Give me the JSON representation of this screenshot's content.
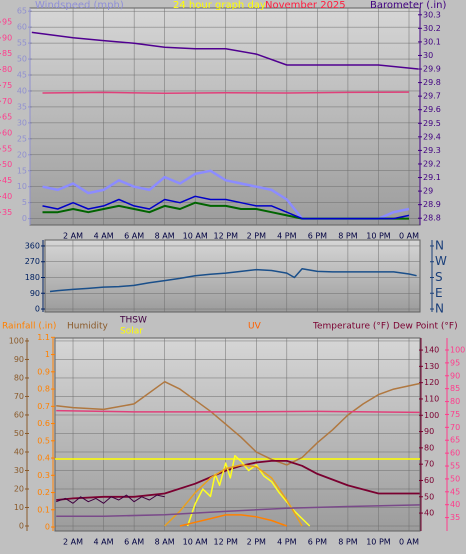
{
  "chart_data": [
    {
      "type": "line",
      "title": "24 hour graph day",
      "subtitle": "November 2025",
      "ylabel": "Windspeed (mph)",
      "y2label": "Barometer (.in)",
      "xlim": [
        -0.82,
        24.72
      ],
      "xticks": [
        {
          "value": 2,
          "label": "2 AM"
        },
        {
          "value": 4,
          "label": "4 AM"
        },
        {
          "value": 6,
          "label": "6 AM"
        },
        {
          "value": 8,
          "label": "8 AM"
        },
        {
          "value": 10,
          "label": "10 AM"
        },
        {
          "value": 12,
          "label": "12 PM"
        },
        {
          "value": 14,
          "label": "2 PM"
        },
        {
          "value": 16,
          "label": "4 PM"
        },
        {
          "value": 18,
          "label": "6 PM"
        },
        {
          "value": 20,
          "label": "8 PM"
        },
        {
          "value": 22,
          "label": "10 PM"
        },
        {
          "value": 24,
          "label": "0 AM"
        }
      ],
      "ylim": [
        -2,
        66
      ],
      "yticks": [
        0,
        5,
        10,
        15,
        20,
        25,
        30,
        35,
        40,
        45,
        50,
        55,
        60,
        65
      ],
      "y3lim": [
        31,
        99.4
      ],
      "y3ticks": [
        35,
        40,
        45,
        50,
        55,
        60,
        65,
        70,
        75,
        80,
        85,
        90,
        95
      ],
      "y2lim": [
        28.75,
        30.35
      ],
      "y2ticks": [
        28.8,
        28.9,
        29,
        29.1,
        29.2,
        29.3,
        29.4,
        29.5,
        29.6,
        29.7,
        29.8,
        29.9,
        30,
        30.1,
        30.2,
        30.3
      ],
      "grid": true,
      "series": [
        {
          "color": "#8c8cff",
          "width": 2.5,
          "x": [
            0,
            1,
            2,
            3,
            4,
            5,
            6,
            7,
            8,
            9,
            10,
            11,
            12,
            13,
            14,
            15,
            16,
            17,
            18,
            19,
            20,
            21,
            22,
            23,
            24
          ],
          "values": [
            10,
            9,
            11,
            8,
            9,
            12,
            10,
            9,
            13,
            11,
            14,
            15,
            12,
            11,
            10,
            9,
            6,
            0,
            0,
            0,
            0,
            0,
            0,
            2,
            3
          ]
        },
        {
          "color": "#006400",
          "width": 2,
          "x": [
            0,
            1,
            2,
            3,
            4,
            5,
            6,
            7,
            8,
            9,
            10,
            11,
            12,
            13,
            14,
            15,
            16,
            17,
            18,
            19,
            20,
            21,
            22,
            23,
            24
          ],
          "values": [
            2,
            2,
            3,
            2,
            3,
            4,
            3,
            2,
            4,
            3,
            5,
            4,
            4,
            3,
            3,
            2,
            1,
            0,
            0,
            0,
            0,
            0,
            0,
            0,
            0
          ]
        },
        {
          "color": "#0000c8",
          "width": 1.5,
          "x": [
            0,
            1,
            2,
            3,
            4,
            5,
            6,
            7,
            8,
            9,
            10,
            11,
            12,
            13,
            14,
            15,
            16,
            17,
            18,
            19,
            20,
            21,
            22,
            23,
            24
          ],
          "values": [
            4,
            3,
            5,
            3,
            4,
            6,
            4,
            3,
            6,
            5,
            7,
            6,
            6,
            5,
            4,
            4,
            2,
            0,
            0,
            0,
            0,
            0,
            0,
            0,
            1
          ]
        },
        {
          "color": "#e0407a",
          "width": 1.5,
          "axis": "y3",
          "x": [
            0,
            4,
            8,
            12,
            16,
            20,
            24
          ],
          "values": [
            72.6,
            72.8,
            72.5,
            72.7,
            72.6,
            72.8,
            72.9
          ]
        },
        {
          "color": "#500090",
          "width": 1.5,
          "axis": "y2",
          "x": [
            -0.7,
            2,
            4,
            6,
            8,
            10,
            12,
            14,
            16,
            18,
            20,
            22,
            24.6
          ],
          "values": [
            30.17,
            30.13,
            30.11,
            30.09,
            30.06,
            30.05,
            30.05,
            30.01,
            29.93,
            29.93,
            29.93,
            29.93,
            29.9
          ]
        }
      ]
    },
    {
      "type": "line",
      "xlim": [
        0.17,
        24.72
      ],
      "xgrid": [
        2,
        4,
        6,
        8,
        10,
        12,
        14,
        16,
        18,
        20,
        22,
        24
      ],
      "ylim": [
        -17,
        394
      ],
      "yticks": [
        0,
        90,
        180,
        270,
        360
      ],
      "y2lim": [
        -17,
        394
      ],
      "y2ticks": [
        {
          "value": 360,
          "label": "N"
        },
        {
          "value": 270,
          "label": "W"
        },
        {
          "value": 180,
          "label": "S"
        },
        {
          "value": 90,
          "label": "E"
        },
        {
          "value": 0,
          "label": "N"
        }
      ],
      "grid": true,
      "series": [
        {
          "color": "#1a4f8a",
          "width": 1.5,
          "x": [
            0.5,
            1,
            2,
            3,
            4,
            5,
            6,
            7,
            8,
            9,
            10,
            11,
            12,
            13,
            14,
            15,
            16,
            16.5,
            17,
            18,
            19,
            20,
            21,
            22,
            23,
            24,
            24.5
          ],
          "values": [
            100,
            105,
            112,
            118,
            125,
            128,
            135,
            150,
            162,
            175,
            190,
            198,
            205,
            215,
            225,
            220,
            205,
            180,
            230,
            215,
            212,
            212,
            212,
            212,
            212,
            200,
            190
          ]
        }
      ]
    },
    {
      "type": "line",
      "y3label": "Rainfall (.in)",
      "xlim": [
        0.82,
        24.72
      ],
      "xticks": [
        {
          "value": 2,
          "label": "2 AM"
        },
        {
          "value": 4,
          "label": "4 AM"
        },
        {
          "value": 6,
          "label": "6 AM"
        },
        {
          "value": 8,
          "label": "8 AM"
        },
        {
          "value": 10,
          "label": "10 AM"
        },
        {
          "value": 12,
          "label": "12 PM"
        },
        {
          "value": 14,
          "label": "2 PM"
        },
        {
          "value": 16,
          "label": "4 PM"
        },
        {
          "value": 18,
          "label": "6 PM"
        },
        {
          "value": 20,
          "label": "8 PM"
        },
        {
          "value": 22,
          "label": "10 PM"
        },
        {
          "value": 24,
          "label": "0 AM"
        }
      ],
      "ylim": [
        -2.7,
        101.6
      ],
      "yticks": [
        0,
        10,
        20,
        30,
        40,
        50,
        60,
        70,
        80,
        90,
        100
      ],
      "y3lim": [
        -0.023,
        1.096
      ],
      "y3ticks": [
        0,
        0.1,
        0.2,
        0.3,
        0.4,
        0.5,
        0.6,
        0.7,
        0.8,
        0.9,
        1,
        1.1
      ],
      "y2lim": [
        29,
        147.4
      ],
      "y2ticks": [
        40,
        50,
        60,
        70,
        80,
        90,
        100,
        110,
        120,
        130,
        140
      ],
      "y4lim": [
        29.8,
        104.65
      ],
      "y4ticks": [
        35,
        40,
        45,
        50,
        55,
        60,
        65,
        70,
        75,
        80,
        85,
        90,
        95,
        100
      ],
      "grid": true,
      "series": [
        {
          "color": "#ffff00",
          "width": 1.5,
          "x": [
            0.82,
            24.72
          ],
          "values": [
            36.2,
            36.2
          ]
        },
        {
          "name": "Humidity",
          "color": "#b07840",
          "width": 1.5,
          "x": [
            0.9,
            2,
            4,
            6,
            8,
            9,
            10,
            11,
            12,
            13,
            14,
            15,
            16,
            17,
            18,
            19,
            20,
            21,
            22,
            23,
            24.7
          ],
          "values": [
            65,
            64,
            63,
            66,
            78,
            74,
            68,
            62,
            55,
            48,
            40,
            36,
            33,
            37,
            45,
            52,
            60,
            66,
            71,
            74,
            77
          ]
        },
        {
          "color": "#e0407a",
          "width": 1.5,
          "axis": "y4",
          "x": [
            0.9,
            6,
            12,
            18,
            24.7
          ],
          "values": [
            76.5,
            76,
            76,
            76.2,
            75.8
          ]
        },
        {
          "name": "Temperature (°F)",
          "color": "#7a0030",
          "width": 1.8,
          "axis": "y2",
          "x": [
            0.9,
            2,
            4,
            6,
            8,
            10,
            12,
            13,
            14,
            15,
            16,
            17,
            18,
            20,
            22,
            24.7
          ],
          "values": [
            48,
            49,
            50,
            50,
            52,
            58,
            66,
            69,
            71,
            72,
            72,
            69,
            64,
            57,
            52,
            52
          ]
        },
        {
          "name": "THSW",
          "color": "#400040",
          "width": 1,
          "axis": "y2",
          "x": [
            0.9,
            1.5,
            2,
            2.5,
            3,
            3.5,
            4,
            4.5,
            5,
            5.5,
            6,
            6.5,
            7,
            7.5,
            8
          ],
          "values": [
            47,
            49,
            46,
            50,
            47,
            49,
            46,
            50,
            48,
            51,
            47,
            50,
            48,
            51,
            50
          ]
        },
        {
          "name": "Solar",
          "color": "#ffff20",
          "width": 1.5,
          "x": [
            9.5,
            10,
            10.5,
            11,
            11.3,
            11.6,
            12,
            12.3,
            12.6,
            13,
            13.5,
            14,
            14.5,
            15,
            15.5,
            16,
            16.5,
            17,
            17.5
          ],
          "values": [
            0,
            12,
            20,
            16,
            28,
            22,
            34,
            26,
            38,
            35,
            30,
            33,
            27,
            24,
            18,
            13,
            8,
            4,
            0
          ]
        },
        {
          "color": "#e8a020",
          "width": 1.5,
          "x": [
            8,
            9,
            10,
            11,
            12,
            13,
            14,
            15,
            16,
            17
          ],
          "values": [
            0,
            8,
            18,
            26,
            31,
            33,
            32,
            26,
            14,
            0
          ]
        },
        {
          "name": "UV",
          "color": "#ff8000",
          "width": 1.5,
          "x": [
            9,
            10,
            11,
            12,
            13,
            14,
            15,
            16
          ],
          "values": [
            0,
            2,
            4,
            6,
            6,
            5,
            3,
            0
          ]
        },
        {
          "name": "Dew Point (°F)",
          "color": "#7a4a8a",
          "width": 1.5,
          "axis": "y2",
          "x": [
            0.9,
            4,
            8,
            12,
            16,
            20,
            24.7
          ],
          "values": [
            38,
            38,
            39,
            41,
            43,
            44,
            45
          ]
        }
      ]
    }
  ]
}
